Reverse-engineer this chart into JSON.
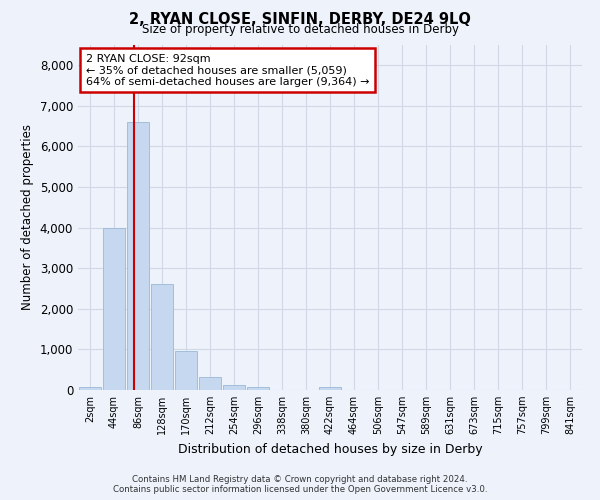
{
  "title": "2, RYAN CLOSE, SINFIN, DERBY, DE24 9LQ",
  "subtitle": "Size of property relative to detached houses in Derby",
  "xlabel": "Distribution of detached houses by size in Derby",
  "ylabel": "Number of detached properties",
  "footer_line1": "Contains HM Land Registry data © Crown copyright and database right 2024.",
  "footer_line2": "Contains public sector information licensed under the Open Government Licence v3.0.",
  "bar_labels": [
    "2sqm",
    "44sqm",
    "86sqm",
    "128sqm",
    "170sqm",
    "212sqm",
    "254sqm",
    "296sqm",
    "338sqm",
    "380sqm",
    "422sqm",
    "464sqm",
    "506sqm",
    "547sqm",
    "589sqm",
    "631sqm",
    "673sqm",
    "715sqm",
    "757sqm",
    "799sqm",
    "841sqm"
  ],
  "bar_values": [
    70,
    4000,
    6600,
    2600,
    950,
    320,
    130,
    80,
    0,
    0,
    80,
    0,
    0,
    0,
    0,
    0,
    0,
    0,
    0,
    0,
    0
  ],
  "bar_color": "#c5d8f0",
  "bar_edge_color": "#9ab8d8",
  "grid_color": "#d0d8e8",
  "background_color": "#edf2fb",
  "vline_color": "#cc0000",
  "annotation_text": "2 RYAN CLOSE: 92sqm\n← 35% of detached houses are smaller (5,059)\n64% of semi-detached houses are larger (9,364) →",
  "annotation_box_color": "#ffffff",
  "annotation_border_color": "#cc0000",
  "ylim": [
    0,
    8500
  ],
  "yticks": [
    0,
    1000,
    2000,
    3000,
    4000,
    5000,
    6000,
    7000,
    8000
  ]
}
